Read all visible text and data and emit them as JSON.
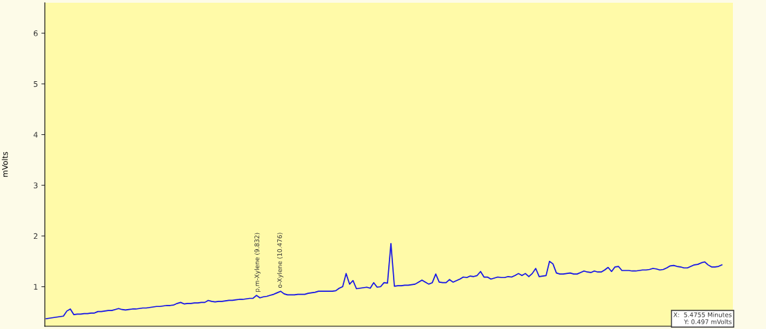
{
  "chart_data": {
    "type": "line",
    "ylabel": "mVolts",
    "ylim": [
      0.22,
      6.6
    ],
    "yticks": [
      1,
      2,
      3,
      4,
      5,
      6
    ],
    "tick_labels": "y",
    "marker": "none",
    "line_style": "solid",
    "categories": [
      null,
      null,
      null,
      null,
      null,
      null,
      null,
      null,
      null,
      null,
      null,
      null,
      null,
      null,
      null,
      null,
      null,
      null,
      null,
      null,
      null,
      null,
      null,
      null,
      null,
      null,
      null,
      null,
      null,
      null,
      null,
      null,
      null,
      null,
      null,
      null,
      null,
      null,
      null,
      null,
      null,
      null,
      null,
      null,
      null,
      null,
      null,
      null,
      null,
      null,
      null,
      null,
      null,
      null,
      null,
      null,
      null,
      null,
      null,
      null,
      null,
      null,
      null,
      null,
      null,
      null,
      null,
      null,
      null,
      null,
      null,
      null,
      null,
      null,
      null,
      null,
      null,
      null,
      null,
      null,
      null,
      null,
      null,
      null,
      null,
      null,
      null,
      null,
      null,
      null,
      null,
      null,
      null,
      null,
      null,
      null,
      null,
      null,
      null,
      null,
      null,
      null,
      null,
      null,
      null,
      null,
      null,
      null,
      null,
      null,
      null,
      null,
      null,
      null,
      null,
      null,
      null,
      null,
      null,
      null,
      null,
      null,
      null,
      null,
      null,
      null,
      null,
      null,
      null,
      null,
      null,
      null,
      null,
      null,
      null,
      null,
      null,
      null,
      null,
      null,
      null,
      null,
      null,
      null,
      null,
      null,
      null,
      null,
      null,
      null,
      null,
      null,
      null,
      null,
      null,
      null,
      null,
      null,
      null,
      null,
      null,
      null,
      null,
      null,
      null,
      null,
      null,
      null,
      null,
      null,
      null,
      null,
      null,
      null,
      null,
      null,
      null,
      null,
      null,
      null,
      null,
      null,
      null,
      null,
      null,
      null,
      null,
      null,
      null,
      null,
      null,
      null,
      null,
      null,
      null,
      null,
      null
    ],
    "series": [
      {
        "color": "#1414e6",
        "values": [
          0.37,
          0.38,
          0.39,
          0.4,
          0.41,
          0.42,
          0.52,
          0.56,
          0.45,
          0.46,
          0.46,
          0.47,
          0.47,
          0.48,
          0.48,
          0.51,
          0.51,
          0.52,
          0.53,
          0.53,
          0.55,
          0.57,
          0.55,
          0.54,
          0.55,
          0.56,
          0.56,
          0.57,
          0.58,
          0.58,
          0.59,
          0.6,
          0.61,
          0.61,
          0.62,
          0.63,
          0.63,
          0.64,
          0.67,
          0.69,
          0.66,
          0.67,
          0.67,
          0.68,
          0.68,
          0.69,
          0.69,
          0.73,
          0.71,
          0.7,
          0.71,
          0.71,
          0.72,
          0.73,
          0.73,
          0.74,
          0.75,
          0.75,
          0.76,
          0.77,
          0.77,
          0.83,
          0.78,
          0.8,
          0.81,
          0.83,
          0.85,
          0.88,
          0.91,
          0.86,
          0.84,
          0.84,
          0.84,
          0.85,
          0.85,
          0.85,
          0.87,
          0.88,
          0.89,
          0.91,
          0.91,
          0.91,
          0.91,
          0.91,
          0.92,
          0.97,
          1.0,
          1.26,
          1.05,
          1.12,
          0.96,
          0.97,
          0.98,
          0.99,
          0.97,
          1.08,
          0.99,
          1.0,
          1.08,
          1.07,
          1.85,
          1.01,
          1.02,
          1.02,
          1.03,
          1.03,
          1.04,
          1.05,
          1.09,
          1.13,
          1.09,
          1.05,
          1.08,
          1.25,
          1.09,
          1.08,
          1.08,
          1.14,
          1.09,
          1.12,
          1.15,
          1.19,
          1.18,
          1.21,
          1.2,
          1.22,
          1.3,
          1.19,
          1.19,
          1.15,
          1.17,
          1.19,
          1.18,
          1.18,
          1.2,
          1.19,
          1.22,
          1.26,
          1.22,
          1.26,
          1.2,
          1.26,
          1.36,
          1.2,
          1.21,
          1.22,
          1.5,
          1.45,
          1.27,
          1.25,
          1.25,
          1.26,
          1.27,
          1.25,
          1.25,
          1.28,
          1.31,
          1.29,
          1.28,
          1.31,
          1.29,
          1.29,
          1.33,
          1.38,
          1.3,
          1.39,
          1.4,
          1.32,
          1.32,
          1.32,
          1.31,
          1.31,
          1.32,
          1.33,
          1.33,
          1.34,
          1.36,
          1.35,
          1.33,
          1.34,
          1.37,
          1.41,
          1.42,
          1.4,
          1.39,
          1.37,
          1.37,
          1.4,
          1.43,
          1.44,
          1.47,
          1.49,
          1.43,
          1.39,
          1.39,
          1.4,
          1.43
        ]
      }
    ],
    "annotations": [
      "p,m-Xylene (9.832)",
      "o-Xylene (10.476)",
      "X:  5.4755 Minutes\nY: 0.497 mVolts"
    ]
  }
}
